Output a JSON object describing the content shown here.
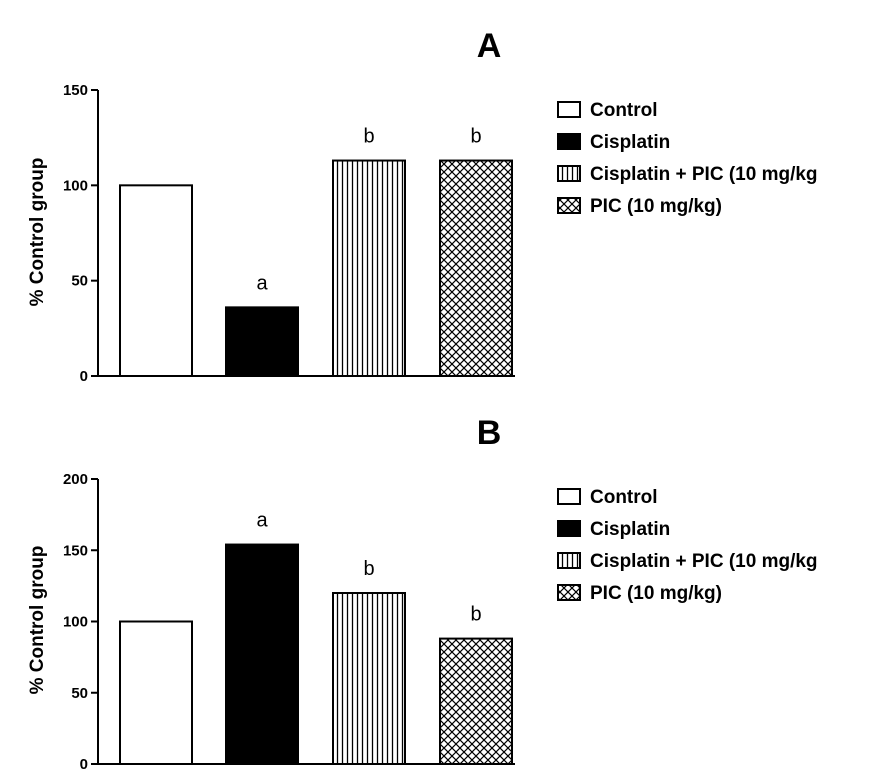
{
  "chart_data": [
    {
      "type": "bar",
      "title": "A",
      "ylabel": "% Control group",
      "xlabel": "",
      "ylim": [
        0,
        150
      ],
      "yticks": [
        0,
        50,
        100,
        150
      ],
      "categories": [
        "Control",
        "Cisplatin",
        "Cisplatin + PIC (10 mg/kg",
        "PIC (10 mg/kg)"
      ],
      "values": [
        100,
        36,
        113,
        113
      ],
      "annotations": [
        "",
        "a",
        "b",
        "b"
      ],
      "patterns": [
        "empty",
        "solid",
        "vertical-lines",
        "crosshatch"
      ],
      "legend": {
        "position": "right",
        "entries": [
          "Control",
          "Cisplatin",
          "Cisplatin + PIC (10 mg/kg",
          "PIC (10 mg/kg)"
        ]
      },
      "grid": false
    },
    {
      "type": "bar",
      "title": "B",
      "ylabel": "% Control group",
      "xlabel": "",
      "ylim": [
        0,
        200
      ],
      "yticks": [
        0,
        50,
        100,
        150,
        200
      ],
      "categories": [
        "Control",
        "Cisplatin",
        "Cisplatin + PIC (10 mg/kg",
        "PIC (10 mg/kg)"
      ],
      "values": [
        100,
        154,
        120,
        88
      ],
      "annotations": [
        "",
        "a",
        "b",
        "b"
      ],
      "patterns": [
        "empty",
        "solid",
        "vertical-lines",
        "crosshatch"
      ],
      "legend": {
        "position": "right",
        "entries": [
          "Control",
          "Cisplatin",
          "Cisplatin + PIC (10 mg/kg",
          "PIC (10 mg/kg)"
        ]
      },
      "grid": false
    }
  ]
}
